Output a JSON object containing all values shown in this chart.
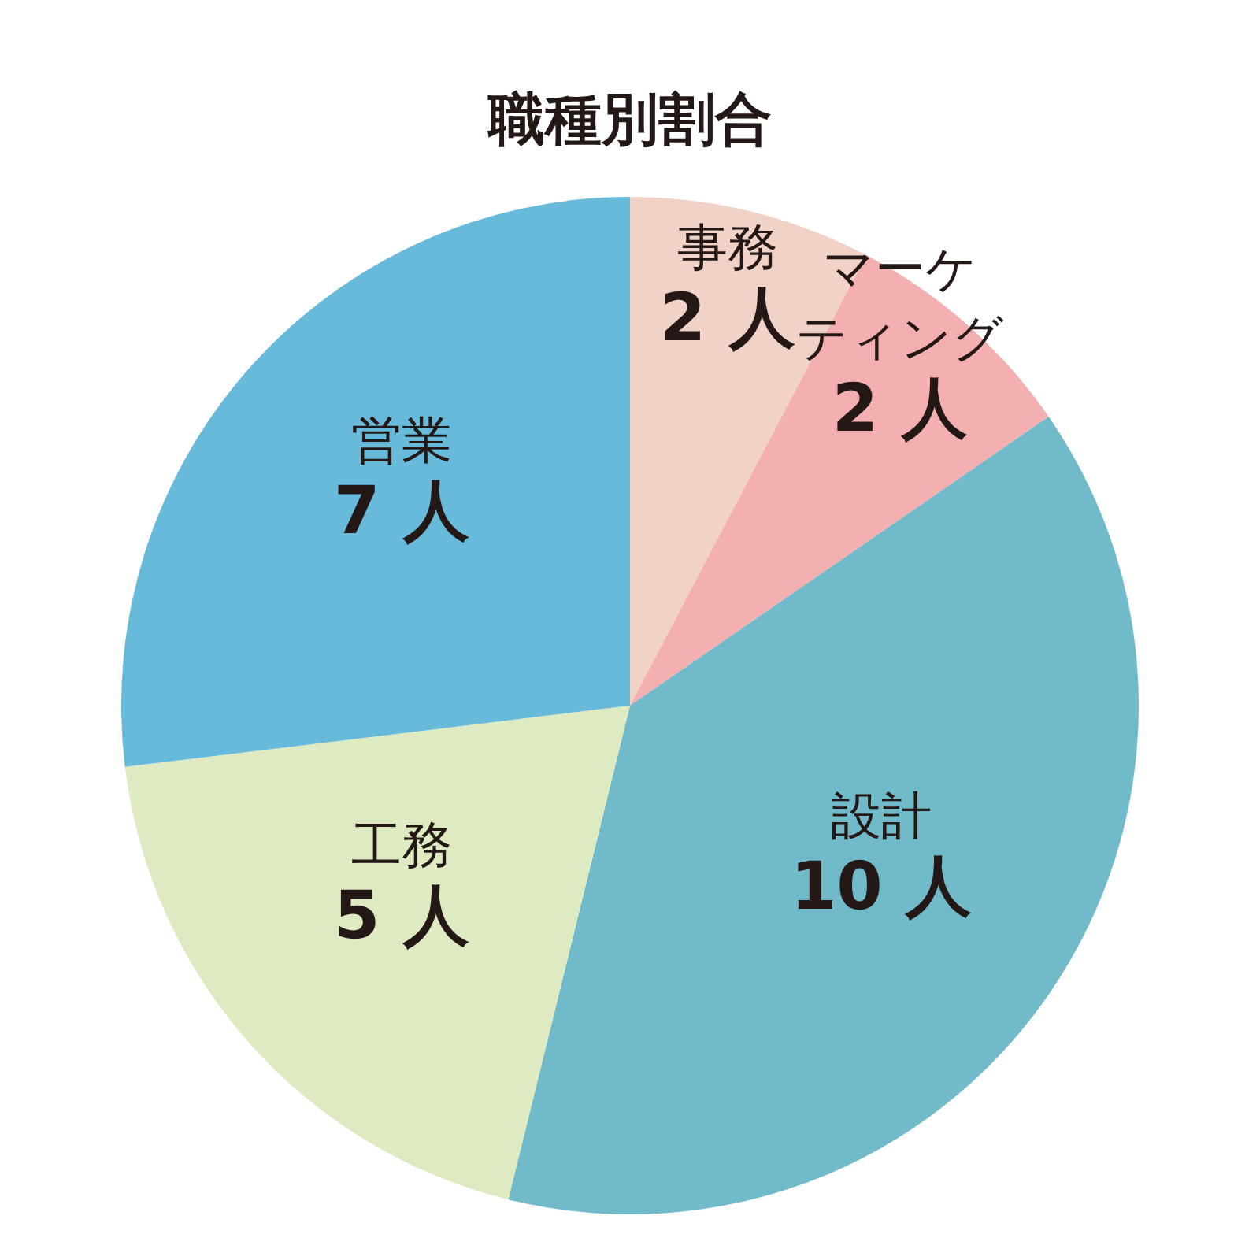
{
  "chart_data": {
    "type": "pie",
    "title": "職種別割合",
    "categories": [
      "事務",
      "マーケティング",
      "設計",
      "工務",
      "営業"
    ],
    "values": [
      2,
      2,
      10,
      5,
      7
    ],
    "value_labels": [
      "2 人",
      "2 人",
      "10 人",
      "5 人",
      "7 人"
    ],
    "colors": [
      "#f0d3c6",
      "#f4b0b1",
      "#70bac9",
      "#deeac1",
      "#68badb"
    ]
  }
}
